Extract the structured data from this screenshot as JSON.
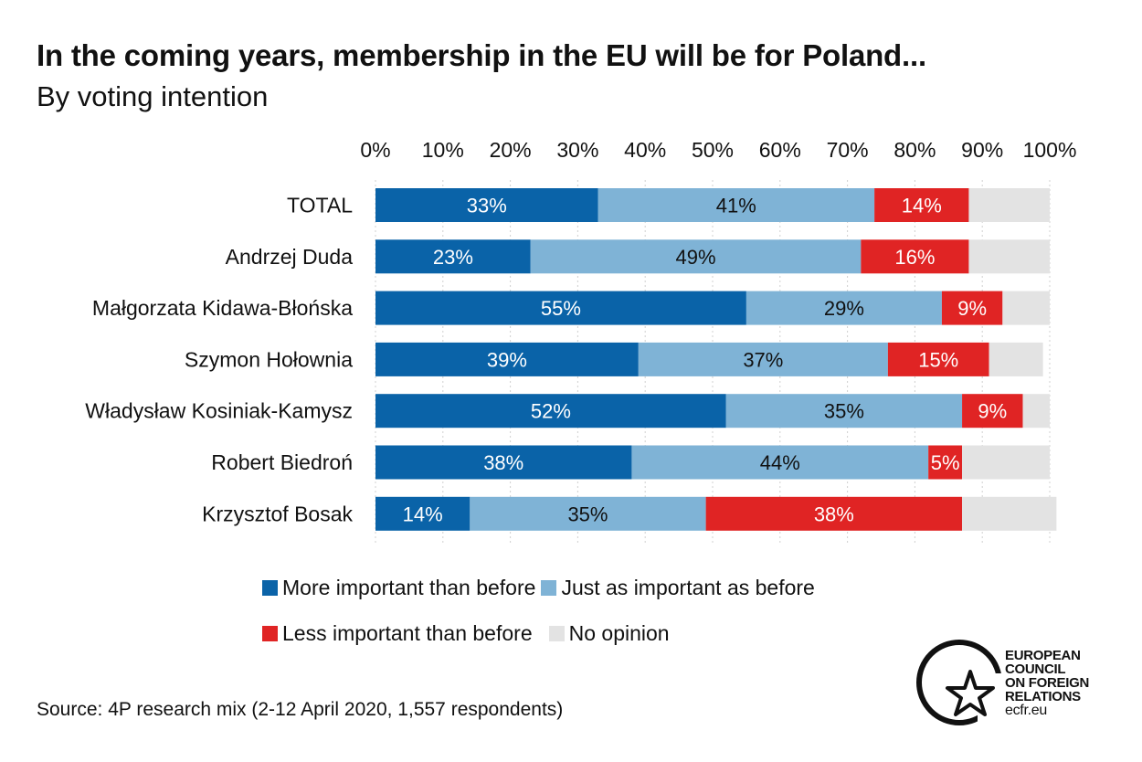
{
  "title": "In the coming years, membership in the EU will be for Poland...",
  "subtitle": "By voting intention",
  "source": "Source: 4P research mix (2-12 April 2020, 1,557 respondents)",
  "logo": {
    "lines": [
      "EUROPEAN",
      "COUNCIL",
      "ON FOREIGN",
      "RELATIONS"
    ],
    "url": "ecfr.eu"
  },
  "colors": {
    "more": "#0a63a8",
    "same": "#7fb3d6",
    "less": "#e02424",
    "none": "#e3e3e3"
  },
  "chart_data": {
    "type": "bar",
    "orientation": "horizontal",
    "stacked": true,
    "xlim": [
      0,
      100
    ],
    "x_ticks": [
      "0%",
      "10%",
      "20%",
      "30%",
      "40%",
      "50%",
      "60%",
      "70%",
      "80%",
      "90%",
      "100%"
    ],
    "categories": [
      "TOTAL",
      "Andrzej Duda",
      "Małgorzata Kidawa-Błońska",
      "Szymon Hołownia",
      "Władysław Kosiniak-Kamysz",
      "Robert Biedroń",
      "Krzysztof Bosak"
    ],
    "series": [
      {
        "name": "More important than before",
        "color": "#0a63a8",
        "label_color": "#ffffff",
        "values": [
          33,
          23,
          55,
          39,
          52,
          38,
          14
        ]
      },
      {
        "name": "Just as important as before",
        "color": "#7fb3d6",
        "label_color": "#111111",
        "values": [
          41,
          49,
          29,
          37,
          35,
          44,
          35
        ]
      },
      {
        "name": "Less important than before",
        "color": "#e02424",
        "label_color": "#ffffff",
        "values": [
          14,
          16,
          9,
          15,
          9,
          5,
          38
        ]
      },
      {
        "name": "No opinion",
        "color": "#e3e3e3",
        "label_color": "#111111",
        "values": [
          12,
          12,
          7,
          8,
          4,
          13,
          14
        ],
        "show_labels": false
      }
    ],
    "data_labels": [
      [
        "33%",
        "41%",
        "14%"
      ],
      [
        "23%",
        "49%",
        "16%"
      ],
      [
        "55%",
        "29%",
        "9%"
      ],
      [
        "39%",
        "37%",
        "15%"
      ],
      [
        "52%",
        "35%",
        "9%"
      ],
      [
        "38%",
        "44%",
        "5%"
      ],
      [
        "14%",
        "35%",
        "38%"
      ]
    ],
    "grid": true,
    "legend_position": "bottom"
  }
}
